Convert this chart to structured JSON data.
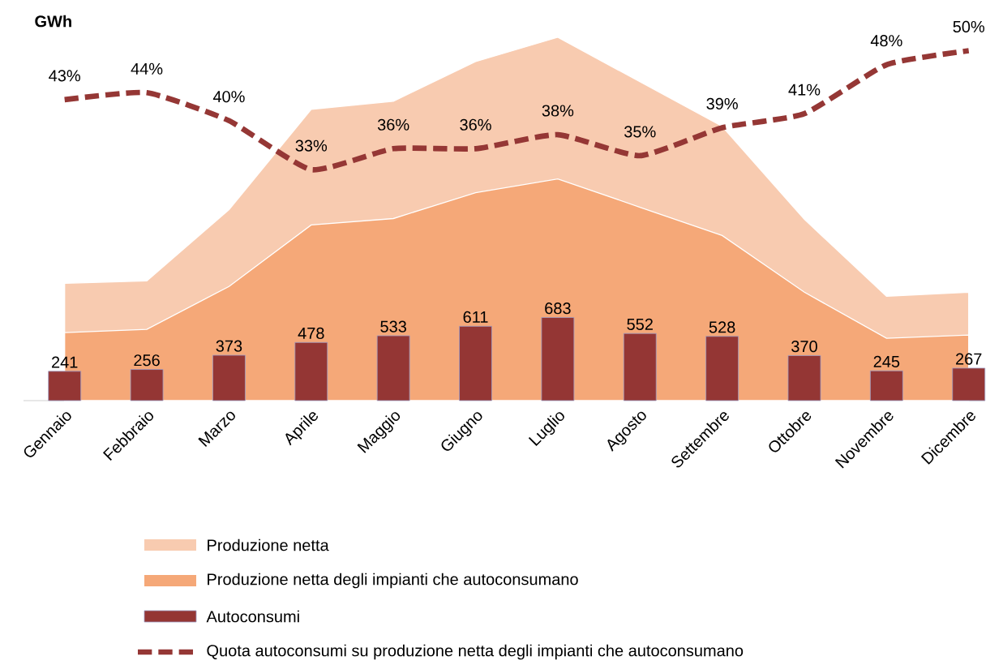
{
  "chart_data": {
    "type": "bar",
    "ylabel": "GWh",
    "categories": [
      "Gennaio",
      "Febbraio",
      "Marzo",
      "Aprile",
      "Maggio",
      "Giugno",
      "Luglio",
      "Agosto",
      "Settembre",
      "Ottobre",
      "Novembre",
      "Dicembre"
    ],
    "tick_labels": "x",
    "legend": "bottom",
    "series": [
      {
        "name": "Produzione netta",
        "type": "area",
        "color": "#f8cbb0",
        "values": [
          964,
          984,
          1569,
          2394,
          2460,
          2786,
          2986,
          2620,
          2254,
          1490,
          858,
          891
        ]
      },
      {
        "name": "Produzione netta degli impianti che autoconsumano",
        "type": "area",
        "color": "#f5a878",
        "values": [
          559,
          585,
          938,
          1443,
          1496,
          1709,
          1822,
          1589,
          1357,
          891,
          512,
          539
        ]
      },
      {
        "name": "Autoconsumi",
        "color": "#943634",
        "values": [
          241,
          256,
          373,
          478,
          533,
          611,
          683,
          552,
          528,
          370,
          245,
          267
        ],
        "value_labels": [
          "241",
          "256",
          "373",
          "478",
          "533",
          "611",
          "683",
          "552",
          "528",
          "370",
          "245",
          "267"
        ]
      },
      {
        "name": "Quota autoconsumi su produzione netta degli impianti che autoconsumano",
        "type": "line",
        "axis": "y2",
        "color": "#953735",
        "line_style": "dashed",
        "marker": "none",
        "values": [
          43,
          44,
          40,
          33,
          36,
          36,
          38,
          35,
          39,
          41,
          48,
          50
        ],
        "value_labels": [
          "43%",
          "44%",
          "40%",
          "33%",
          "36%",
          "36%",
          "38%",
          "35%",
          "39%",
          "41%",
          "48%",
          "50%"
        ]
      }
    ]
  }
}
